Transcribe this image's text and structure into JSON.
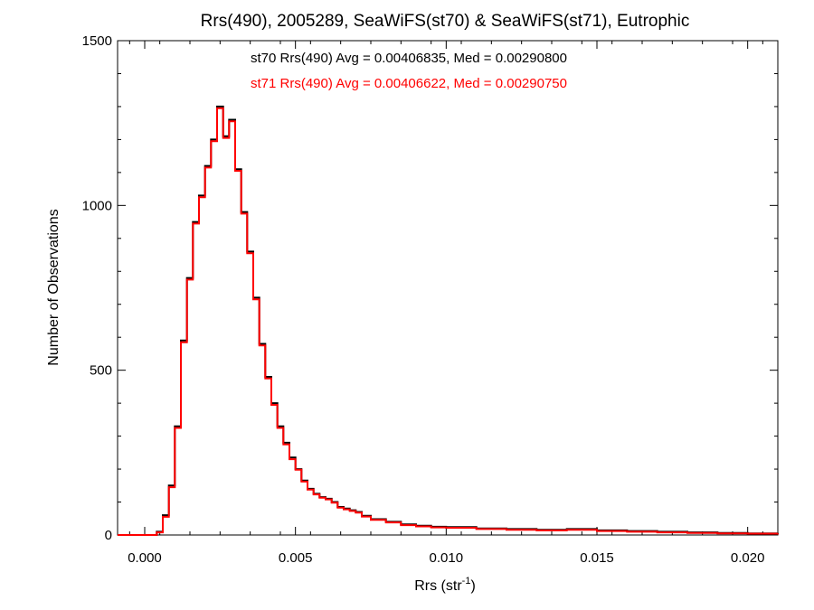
{
  "chart_data": {
    "type": "line",
    "title": "Rrs(490), 2005289, SeaWiFS(st70) & SeaWiFS(st71), Eutrophic",
    "xlabel_main": "Rrs (str",
    "xlabel_sup": "-1",
    "xlabel_close": ")",
    "ylabel": "Number of Observations",
    "xlim": [
      -0.0009,
      0.021
    ],
    "ylim": [
      0,
      1500
    ],
    "x_ticks": [
      0.0,
      0.005,
      0.01,
      0.015,
      0.02
    ],
    "x_tick_labels": [
      "0.000",
      "0.005",
      "0.010",
      "0.015",
      "0.020"
    ],
    "y_ticks": [
      0,
      500,
      1000,
      1500
    ],
    "y_tick_labels": [
      "0",
      "500",
      "1000",
      "1500"
    ],
    "grid": false,
    "series": [
      {
        "name": "st70",
        "color": "#000000",
        "annotation": "st70 Rrs(490) Avg = 0.00406835, Med = 0.00290800",
        "points": [
          [
            -0.0009,
            0
          ],
          [
            0.0002,
            0
          ],
          [
            0.0004,
            10
          ],
          [
            0.0006,
            60
          ],
          [
            0.0008,
            150
          ],
          [
            0.001,
            330
          ],
          [
            0.0012,
            590
          ],
          [
            0.0014,
            780
          ],
          [
            0.0016,
            950
          ],
          [
            0.0018,
            1030
          ],
          [
            0.002,
            1120
          ],
          [
            0.0022,
            1200
          ],
          [
            0.0024,
            1300
          ],
          [
            0.0026,
            1210
          ],
          [
            0.0028,
            1260
          ],
          [
            0.003,
            1110
          ],
          [
            0.0032,
            980
          ],
          [
            0.0034,
            860
          ],
          [
            0.0036,
            720
          ],
          [
            0.0038,
            580
          ],
          [
            0.004,
            480
          ],
          [
            0.0042,
            400
          ],
          [
            0.0044,
            330
          ],
          [
            0.0046,
            280
          ],
          [
            0.0048,
            235
          ],
          [
            0.005,
            200
          ],
          [
            0.0052,
            165
          ],
          [
            0.0054,
            140
          ],
          [
            0.0056,
            125
          ],
          [
            0.0058,
            115
          ],
          [
            0.006,
            110
          ],
          [
            0.0062,
            100
          ],
          [
            0.0064,
            85
          ],
          [
            0.0066,
            80
          ],
          [
            0.0068,
            75
          ],
          [
            0.007,
            70
          ],
          [
            0.0072,
            58
          ],
          [
            0.0075,
            48
          ],
          [
            0.008,
            40
          ],
          [
            0.0085,
            32
          ],
          [
            0.009,
            28
          ],
          [
            0.0095,
            25
          ],
          [
            0.01,
            24
          ],
          [
            0.011,
            20
          ],
          [
            0.012,
            18
          ],
          [
            0.013,
            16
          ],
          [
            0.014,
            18
          ],
          [
            0.015,
            14
          ],
          [
            0.016,
            12
          ],
          [
            0.017,
            10
          ],
          [
            0.018,
            8
          ],
          [
            0.019,
            6
          ],
          [
            0.02,
            5
          ],
          [
            0.021,
            6
          ]
        ]
      },
      {
        "name": "st71",
        "color": "#ff0000",
        "annotation": "st71 Rrs(490) Avg = 0.00406622, Med = 0.00290750",
        "points": [
          [
            -0.0009,
            0
          ],
          [
            0.0002,
            0
          ],
          [
            0.0004,
            8
          ],
          [
            0.0006,
            55
          ],
          [
            0.0008,
            145
          ],
          [
            0.001,
            325
          ],
          [
            0.0012,
            585
          ],
          [
            0.0014,
            775
          ],
          [
            0.0016,
            945
          ],
          [
            0.0018,
            1025
          ],
          [
            0.002,
            1115
          ],
          [
            0.0022,
            1195
          ],
          [
            0.0024,
            1295
          ],
          [
            0.0026,
            1205
          ],
          [
            0.0028,
            1255
          ],
          [
            0.003,
            1105
          ],
          [
            0.0032,
            975
          ],
          [
            0.0034,
            855
          ],
          [
            0.0036,
            715
          ],
          [
            0.0038,
            575
          ],
          [
            0.004,
            475
          ],
          [
            0.0042,
            395
          ],
          [
            0.0044,
            325
          ],
          [
            0.0046,
            275
          ],
          [
            0.0048,
            230
          ],
          [
            0.005,
            198
          ],
          [
            0.0052,
            162
          ],
          [
            0.0054,
            138
          ],
          [
            0.0056,
            123
          ],
          [
            0.0058,
            113
          ],
          [
            0.006,
            108
          ],
          [
            0.0062,
            98
          ],
          [
            0.0064,
            83
          ],
          [
            0.0066,
            78
          ],
          [
            0.0068,
            73
          ],
          [
            0.007,
            68
          ],
          [
            0.0072,
            56
          ],
          [
            0.0075,
            46
          ],
          [
            0.008,
            38
          ],
          [
            0.0085,
            30
          ],
          [
            0.009,
            26
          ],
          [
            0.0095,
            23
          ],
          [
            0.01,
            22
          ],
          [
            0.011,
            18
          ],
          [
            0.012,
            16
          ],
          [
            0.013,
            14
          ],
          [
            0.014,
            16
          ],
          [
            0.015,
            12
          ],
          [
            0.016,
            10
          ],
          [
            0.017,
            8
          ],
          [
            0.018,
            6
          ],
          [
            0.019,
            5
          ],
          [
            0.02,
            4
          ],
          [
            0.021,
            5
          ]
        ]
      }
    ]
  }
}
